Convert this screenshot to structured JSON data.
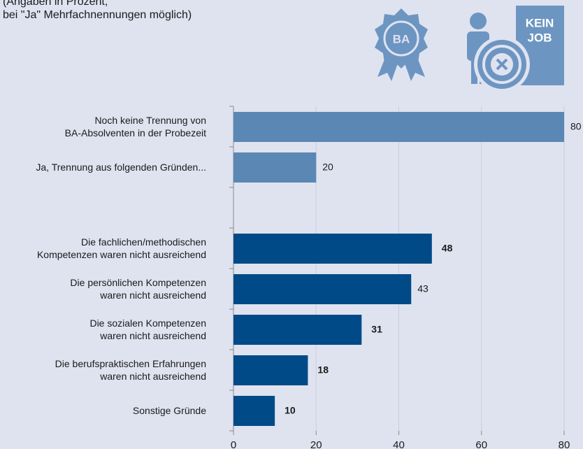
{
  "chart_data": {
    "type": "barh",
    "subtitle": [
      "(Angaben in Prozent,",
      "bei \"Ja\" Mehrfachnennungen möglich)"
    ],
    "icons": {
      "badge": "BA",
      "sign": [
        "KEIN",
        "JOB"
      ]
    },
    "categories": [
      "Noch keine Trennung von\nBA-Absolventen in der Probezeit",
      "Ja, Trennung aus folgenden Gründen...",
      null,
      "Die fachlichen/methodischen\nKompetenzen waren nicht ausreichend",
      "Die persönlichen Kompetenzen\nwaren nicht ausreichend",
      "Die sozialen Kompetenzen\nwaren nicht ausreichend",
      "Die berufspraktischen Erfahrungen\nwaren nicht ausreichend",
      "Sonstige Gründe"
    ],
    "values": [
      80,
      20,
      null,
      48,
      43,
      31,
      18,
      10
    ],
    "colors": [
      "#5b87b5",
      "#5b87b5",
      null,
      "#004a88",
      "#004a88",
      "#004a88",
      "#004a88",
      "#004a88"
    ],
    "value_label_bold": [
      false,
      false,
      null,
      true,
      false,
      true,
      true,
      true
    ],
    "xlim": [
      0,
      80
    ],
    "xticks": [
      0,
      20,
      40,
      60,
      80
    ],
    "grid": true
  }
}
